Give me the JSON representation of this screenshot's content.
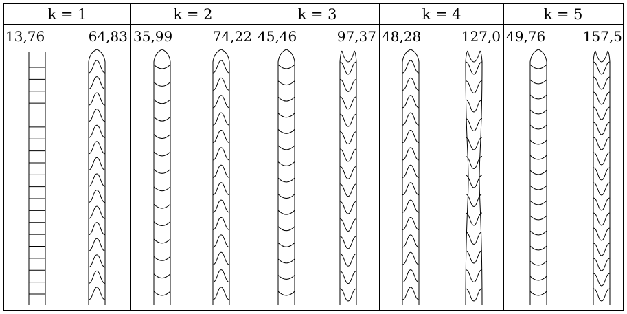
{
  "table": {
    "columns": [
      {
        "k_label": "k = 1",
        "freqs": [
          "13,76",
          "64,83"
        ],
        "modes": [
          {
            "pattern": "rings",
            "lines": 20
          },
          {
            "pattern": "arches",
            "lines": 15
          }
        ]
      },
      {
        "k_label": "k = 2",
        "freqs": [
          "35,99",
          "74,22"
        ],
        "modes": [
          {
            "pattern": "scallops",
            "lines": 14
          },
          {
            "pattern": "arches",
            "lines": 14
          }
        ]
      },
      {
        "k_label": "k = 3",
        "freqs": [
          "45,46",
          "97,37"
        ],
        "modes": [
          {
            "pattern": "scallops",
            "lines": 15
          },
          {
            "pattern": "valleys",
            "lines": 14
          }
        ]
      },
      {
        "k_label": "k = 4",
        "freqs": [
          "48,28",
          "127,0"
        ],
        "modes": [
          {
            "pattern": "arches",
            "lines": 14
          },
          {
            "pattern": "valleys",
            "lines": 13
          }
        ]
      },
      {
        "k_label": "k = 5",
        "freqs": [
          "49,76",
          "157,5"
        ],
        "modes": [
          {
            "pattern": "scallops",
            "lines": 16
          },
          {
            "pattern": "valleys",
            "lines": 16
          }
        ]
      }
    ]
  }
}
